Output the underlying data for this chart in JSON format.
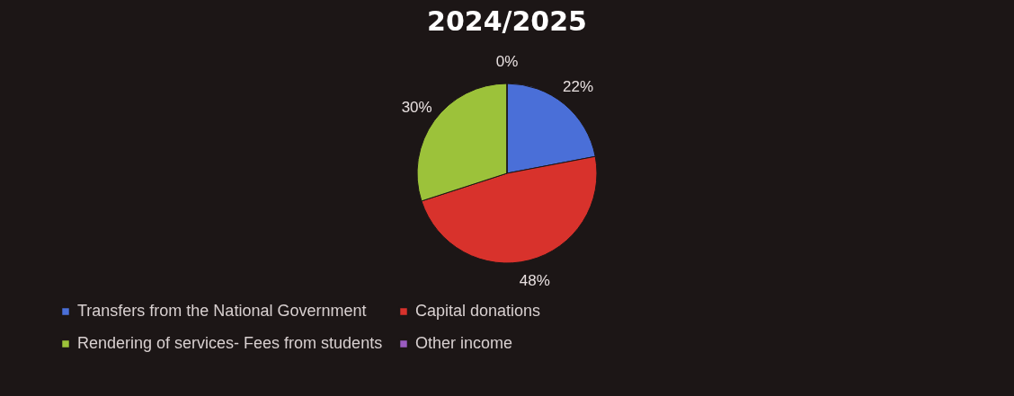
{
  "chart_data": {
    "type": "pie",
    "title": "2024/2025",
    "categories": [
      "Transfers from the National Government",
      "Capital donations",
      "Rendering of services- Fees from students",
      "Other income"
    ],
    "values": [
      22,
      48,
      30,
      0
    ],
    "colors": [
      "#4a6fd8",
      "#d8322c",
      "#9cc23a",
      "#9a5cc0"
    ],
    "value_labels": [
      "22%",
      "48%",
      "30%",
      "0%"
    ],
    "legend": "bottom"
  }
}
